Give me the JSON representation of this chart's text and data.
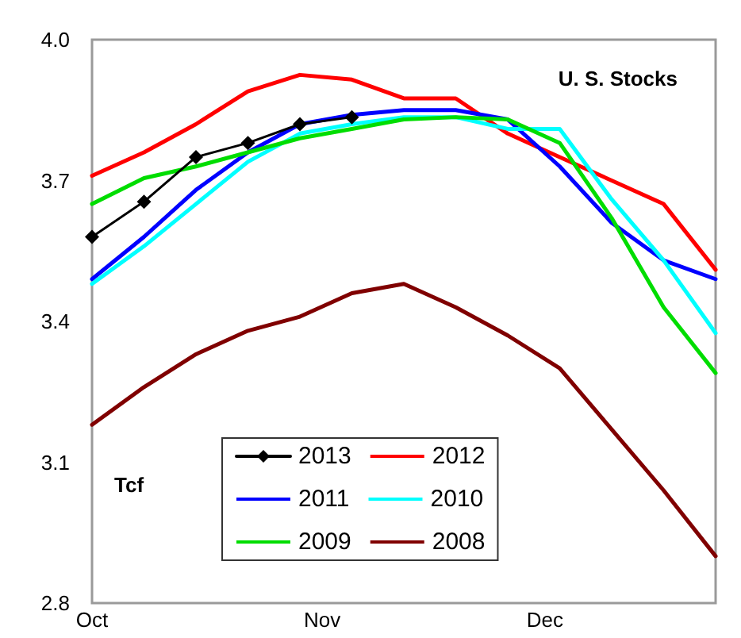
{
  "chart_data": {
    "type": "line",
    "x": [
      "--10-01",
      "--10-08",
      "--10-15",
      "--10-22",
      "--10-29",
      "--11-05",
      "--11-12",
      "--11-19",
      "--11-26",
      "--12-03",
      "--12-10",
      "--12-17",
      "--12-24"
    ],
    "series": [
      {
        "name": "2013",
        "color": "#000000",
        "marker": "diamond",
        "values": [
          3.58,
          3.655,
          3.75,
          3.78,
          3.82,
          3.835,
          null,
          null,
          null,
          null,
          null,
          null,
          null
        ]
      },
      {
        "name": "2012",
        "color": "#ff0000",
        "values": [
          3.71,
          3.76,
          3.82,
          3.89,
          3.925,
          3.915,
          3.875,
          3.875,
          3.8,
          3.75,
          3.7,
          3.65,
          3.51
        ]
      },
      {
        "name": "2011",
        "color": "#0000ff",
        "values": [
          3.49,
          3.58,
          3.68,
          3.76,
          3.82,
          3.84,
          3.85,
          3.85,
          3.83,
          3.73,
          3.61,
          3.53,
          3.49
        ]
      },
      {
        "name": "2010",
        "color": "#00ffff",
        "values": [
          3.48,
          3.56,
          3.65,
          3.74,
          3.8,
          3.82,
          3.835,
          3.835,
          3.81,
          3.81,
          3.66,
          3.53,
          3.375
        ]
      },
      {
        "name": "2009",
        "color": "#00dd00",
        "values": [
          3.65,
          3.705,
          3.73,
          3.76,
          3.79,
          3.81,
          3.83,
          3.835,
          3.83,
          3.78,
          3.62,
          3.43,
          3.29
        ]
      },
      {
        "name": "2008",
        "color": "#800000",
        "values": [
          3.18,
          3.26,
          3.33,
          3.38,
          3.41,
          3.46,
          3.48,
          3.43,
          3.37,
          3.3,
          3.17,
          3.04,
          2.9
        ]
      }
    ],
    "xlim": [
      "--10-01",
      "--12-24"
    ],
    "xticks": [
      {
        "value": "--10-01",
        "label": "Oct"
      },
      {
        "value": "--11-01",
        "label": "Nov"
      },
      {
        "value": "--12-01",
        "label": "Dec"
      }
    ],
    "ylim": [
      2.8,
      4
    ],
    "yticks": [
      {
        "value": 2.8,
        "label": "2.8"
      },
      {
        "value": 3.1,
        "label": "3.1"
      },
      {
        "value": 3.4,
        "label": "3.4"
      },
      {
        "value": 3.7,
        "label": "3.7"
      },
      {
        "value": 4,
        "label": "4.0"
      }
    ],
    "annotations": [
      "U. S. Stocks",
      "Tcf"
    ],
    "legend": "bottom",
    "grid": false,
    "marker": "none",
    "line_style": "solid"
  }
}
